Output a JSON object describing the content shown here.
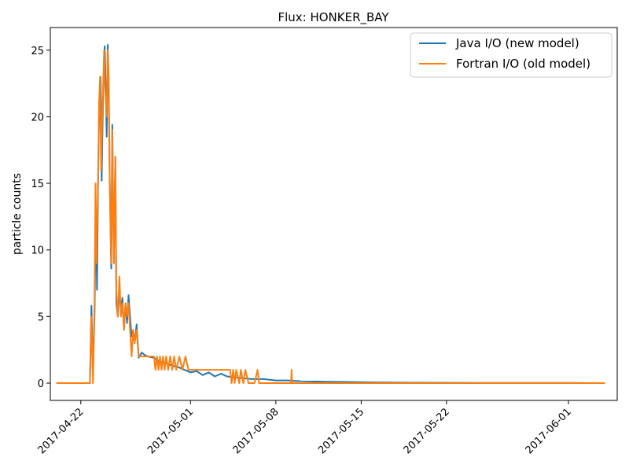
{
  "chart_data": {
    "type": "line",
    "title": "Flux: HONKER_BAY",
    "xlabel": "",
    "ylabel": "particle counts",
    "xlim": [
      "2017-04-19T12:00",
      "2017-06-05T00:00"
    ],
    "ylim": [
      -1.3,
      26.7
    ],
    "x_ticks": [
      "2017-04-22",
      "2017-05-01",
      "2017-05-08",
      "2017-05-15",
      "2017-05-22",
      "2017-06-01"
    ],
    "y_ticks": [
      0,
      5,
      10,
      15,
      20,
      25
    ],
    "grid": false,
    "legend_position": "top-right",
    "series": [
      {
        "name": "Java I/O (new model)",
        "color": "#1f77b4",
        "points": [
          [
            "2017-04-20T00:00",
            0
          ],
          [
            "2017-04-22T12:00",
            0
          ],
          [
            "2017-04-22T18:00",
            0
          ],
          [
            "2017-04-22T21:00",
            5.8
          ],
          [
            "2017-04-23T00:00",
            1
          ],
          [
            "2017-04-23T03:00",
            5
          ],
          [
            "2017-04-23T06:00",
            13
          ],
          [
            "2017-04-23T08:00",
            7
          ],
          [
            "2017-04-23T10:00",
            15
          ],
          [
            "2017-04-23T12:00",
            20
          ],
          [
            "2017-04-23T15:00",
            23
          ],
          [
            "2017-04-23T17:00",
            15.2
          ],
          [
            "2017-04-23T20:00",
            22
          ],
          [
            "2017-04-23T23:00",
            25.3
          ],
          [
            "2017-04-24T01:00",
            22.5
          ],
          [
            "2017-04-24T03:00",
            18.5
          ],
          [
            "2017-04-24T05:00",
            25.4
          ],
          [
            "2017-04-24T07:00",
            22
          ],
          [
            "2017-04-24T09:00",
            15
          ],
          [
            "2017-04-24T12:00",
            8.6
          ],
          [
            "2017-04-24T14:00",
            19.4
          ],
          [
            "2017-04-24T17:00",
            9
          ],
          [
            "2017-04-24T20:00",
            17
          ],
          [
            "2017-04-24T22:00",
            6
          ],
          [
            "2017-04-25T01:00",
            5
          ],
          [
            "2017-04-25T04:00",
            7
          ],
          [
            "2017-04-25T07:00",
            5.5
          ],
          [
            "2017-04-25T10:00",
            6.4
          ],
          [
            "2017-04-25T13:00",
            4
          ],
          [
            "2017-04-25T16:00",
            6
          ],
          [
            "2017-04-25T19:00",
            4.5
          ],
          [
            "2017-04-25T22:00",
            6.6
          ],
          [
            "2017-04-26T01:00",
            5
          ],
          [
            "2017-04-26T04:00",
            3.5
          ],
          [
            "2017-04-26T07:00",
            4
          ],
          [
            "2017-04-26T10:00",
            3
          ],
          [
            "2017-04-26T14:00",
            4.4
          ],
          [
            "2017-04-26T18:00",
            1.9
          ],
          [
            "2017-04-27T00:00",
            2.3
          ],
          [
            "2017-04-27T06:00",
            2.1
          ],
          [
            "2017-04-27T12:00",
            2
          ],
          [
            "2017-04-28T00:00",
            1.9
          ],
          [
            "2017-04-28T12:00",
            1.6
          ],
          [
            "2017-04-29T00:00",
            1.5
          ],
          [
            "2017-04-29T12:00",
            1.3
          ],
          [
            "2017-04-30T00:00",
            1.2
          ],
          [
            "2017-04-30T12:00",
            1.0
          ],
          [
            "2017-05-01T00:00",
            0.8
          ],
          [
            "2017-05-01T12:00",
            0.9
          ],
          [
            "2017-05-02T00:00",
            0.6
          ],
          [
            "2017-05-02T12:00",
            0.8
          ],
          [
            "2017-05-03T00:00",
            0.5
          ],
          [
            "2017-05-03T12:00",
            0.7
          ],
          [
            "2017-05-04T00:00",
            0.5
          ],
          [
            "2017-05-05T00:00",
            0.4
          ],
          [
            "2017-05-06T00:00",
            0.3
          ],
          [
            "2017-05-07T00:00",
            0.3
          ],
          [
            "2017-05-08T00:00",
            0.2
          ],
          [
            "2017-05-09T00:00",
            0.2
          ],
          [
            "2017-05-10T00:00",
            0.15
          ],
          [
            "2017-05-12T00:00",
            0.1
          ],
          [
            "2017-05-14T00:00",
            0.08
          ],
          [
            "2017-05-16T00:00",
            0.05
          ],
          [
            "2017-05-20T00:00",
            0.03
          ],
          [
            "2017-05-25T00:00",
            0.02
          ],
          [
            "2017-06-01T00:00",
            0.01
          ],
          [
            "2017-06-04T00:00",
            0
          ]
        ]
      },
      {
        "name": "Fortran I/O (old model)",
        "color": "#ff7f0e",
        "points": [
          [
            "2017-04-20T00:00",
            0
          ],
          [
            "2017-04-22T12:00",
            0
          ],
          [
            "2017-04-22T18:00",
            0
          ],
          [
            "2017-04-22T21:00",
            5
          ],
          [
            "2017-04-23T00:00",
            0
          ],
          [
            "2017-04-23T03:00",
            6
          ],
          [
            "2017-04-23T05:00",
            15
          ],
          [
            "2017-04-23T07:00",
            9
          ],
          [
            "2017-04-23T10:00",
            15
          ],
          [
            "2017-04-23T12:00",
            21
          ],
          [
            "2017-04-23T14:00",
            23
          ],
          [
            "2017-04-23T16:00",
            16
          ],
          [
            "2017-04-23T19:00",
            21
          ],
          [
            "2017-04-23T22:00",
            25
          ],
          [
            "2017-04-24T00:00",
            22
          ],
          [
            "2017-04-24T03:00",
            20
          ],
          [
            "2017-04-24T05:00",
            25
          ],
          [
            "2017-04-24T07:00",
            23
          ],
          [
            "2017-04-24T09:00",
            15
          ],
          [
            "2017-04-24T12:00",
            9
          ],
          [
            "2017-04-24T14:00",
            19
          ],
          [
            "2017-04-24T17:00",
            9
          ],
          [
            "2017-04-24T20:00",
            17
          ],
          [
            "2017-04-24T22:00",
            7
          ],
          [
            "2017-04-25T01:00",
            5
          ],
          [
            "2017-04-25T04:00",
            8
          ],
          [
            "2017-04-25T07:00",
            5
          ],
          [
            "2017-04-25T10:00",
            6
          ],
          [
            "2017-04-25T13:00",
            4
          ],
          [
            "2017-04-25T16:00",
            6
          ],
          [
            "2017-04-25T19:00",
            5
          ],
          [
            "2017-04-25T22:00",
            6
          ],
          [
            "2017-04-26T01:00",
            4
          ],
          [
            "2017-04-26T04:00",
            2
          ],
          [
            "2017-04-26T07:00",
            4
          ],
          [
            "2017-04-26T10:00",
            3
          ],
          [
            "2017-04-26T14:00",
            4
          ],
          [
            "2017-04-26T18:00",
            2
          ],
          [
            "2017-04-27T06:00",
            2
          ],
          [
            "2017-04-27T18:00",
            2
          ],
          [
            "2017-04-28T00:00",
            2
          ],
          [
            "2017-04-28T03:00",
            1
          ],
          [
            "2017-04-28T06:00",
            2
          ],
          [
            "2017-04-28T09:00",
            1
          ],
          [
            "2017-04-28T12:00",
            2
          ],
          [
            "2017-04-28T15:00",
            1
          ],
          [
            "2017-04-28T18:00",
            2
          ],
          [
            "2017-04-28T21:00",
            1
          ],
          [
            "2017-04-29T00:00",
            2
          ],
          [
            "2017-04-29T04:00",
            1
          ],
          [
            "2017-04-29T08:00",
            2
          ],
          [
            "2017-04-29T12:00",
            1
          ],
          [
            "2017-04-29T16:00",
            2
          ],
          [
            "2017-04-29T20:00",
            1
          ],
          [
            "2017-04-30T02:00",
            2
          ],
          [
            "2017-04-30T08:00",
            1
          ],
          [
            "2017-04-30T14:00",
            2
          ],
          [
            "2017-04-30T20:00",
            1
          ],
          [
            "2017-05-01T06:00",
            1
          ],
          [
            "2017-05-02T00:00",
            1
          ],
          [
            "2017-05-03T00:00",
            1
          ],
          [
            "2017-05-04T00:00",
            1
          ],
          [
            "2017-05-04T06:00",
            1
          ],
          [
            "2017-05-04T09:00",
            0
          ],
          [
            "2017-05-04T12:00",
            1
          ],
          [
            "2017-05-04T15:00",
            0
          ],
          [
            "2017-05-04T18:00",
            1
          ],
          [
            "2017-05-05T00:00",
            0
          ],
          [
            "2017-05-05T03:00",
            1
          ],
          [
            "2017-05-05T08:00",
            0
          ],
          [
            "2017-05-05T12:00",
            1
          ],
          [
            "2017-05-05T18:00",
            0
          ],
          [
            "2017-05-06T06:00",
            0
          ],
          [
            "2017-05-06T12:00",
            1
          ],
          [
            "2017-05-06T15:00",
            0
          ],
          [
            "2017-05-06T20:00",
            0
          ],
          [
            "2017-05-07T00:00",
            0
          ],
          [
            "2017-05-09T00:00",
            0
          ],
          [
            "2017-05-09T06:00",
            0
          ],
          [
            "2017-05-09T07:00",
            1
          ],
          [
            "2017-05-09T08:00",
            0
          ],
          [
            "2017-05-20T00:00",
            0
          ],
          [
            "2017-06-04T00:00",
            0
          ]
        ]
      }
    ]
  }
}
